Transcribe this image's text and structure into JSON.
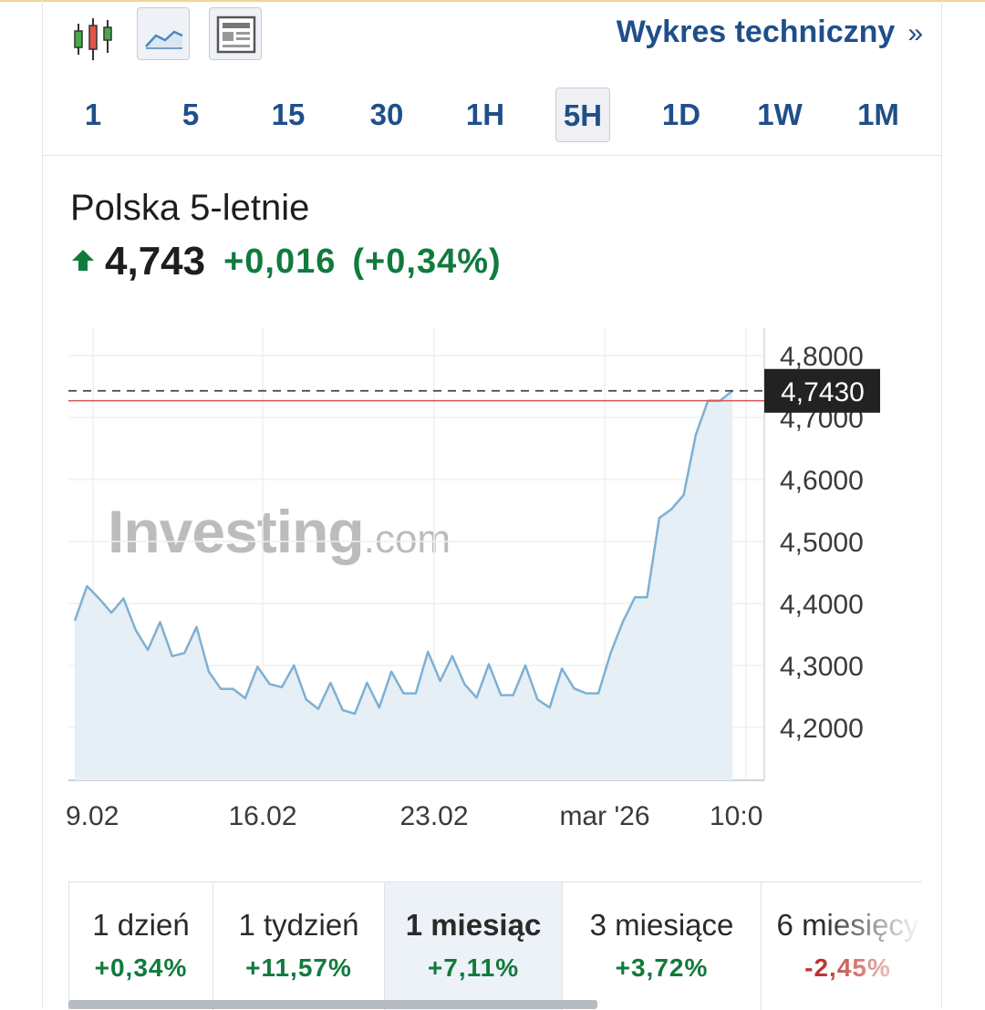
{
  "toolbar": {
    "icons": [
      "candlestick-chart-icon",
      "area-chart-icon",
      "news-layout-icon"
    ],
    "tech_link": "Wykres techniczny",
    "tech_chevron": "»"
  },
  "time_ranges": [
    "1",
    "5",
    "15",
    "30",
    "1H",
    "5H",
    "1D",
    "1W",
    "1M"
  ],
  "active_range": "5H",
  "instrument": {
    "name": "Polska 5-letnie",
    "last": "4,743",
    "change": "+0,016",
    "change_pct": "(+0,34%)",
    "direction": "up"
  },
  "watermark": {
    "main": "Investing",
    "suffix": ".com"
  },
  "chart_data": {
    "type": "area",
    "y_ticks": [
      4.2,
      4.3,
      4.4,
      4.5,
      4.6,
      4.7,
      4.8
    ],
    "y_tick_labels": [
      "4,2000",
      "4,3000",
      "4,4000",
      "4,5000",
      "4,6000",
      "4,7000",
      "4,8000"
    ],
    "x_tick_labels": [
      "9.02",
      "16.02",
      "23.02",
      "mar '26",
      "10:0"
    ],
    "current_value_label": "4,7430",
    "current_value": 4.743,
    "previous_close_line": 4.727,
    "series": [
      {
        "values": [
          4.372,
          4.428,
          4.408,
          4.385,
          4.408,
          4.357,
          4.325,
          4.37,
          4.315,
          4.32,
          4.362,
          4.29,
          4.262,
          4.262,
          4.247,
          4.298,
          4.27,
          4.265,
          4.3,
          4.245,
          4.23,
          4.272,
          4.228,
          4.222,
          4.272,
          4.232,
          4.29,
          4.255,
          4.255,
          4.322,
          4.275,
          4.315,
          4.27,
          4.248,
          4.302,
          4.252,
          4.252,
          4.3,
          4.245,
          4.232,
          4.295,
          4.263,
          4.255,
          4.255,
          4.32,
          4.37,
          4.41,
          4.41,
          4.538,
          4.552,
          4.575,
          4.672,
          4.727,
          4.727,
          4.743
        ]
      }
    ]
  },
  "period_tabs": [
    {
      "label": "1 dzień",
      "value": "+0,34%",
      "dir": "up"
    },
    {
      "label": "1 tydzień",
      "value": "+11,57%",
      "dir": "up"
    },
    {
      "label": "1 miesiąc",
      "value": "+7,11%",
      "dir": "up"
    },
    {
      "label": "3 miesiące",
      "value": "+3,72%",
      "dir": "up"
    },
    {
      "label": "6 miesięcy",
      "value": "-2,45%",
      "dir": "down"
    }
  ],
  "active_period": "1 miesiąc",
  "colors": {
    "link": "#1f4f8a",
    "up": "#117a3d",
    "down": "#c0312b",
    "series_line": "#7fb0d2",
    "series_fill": "#e6eef6",
    "prev_close_line": "#d9534f",
    "price_tag_bg": "#222222"
  }
}
